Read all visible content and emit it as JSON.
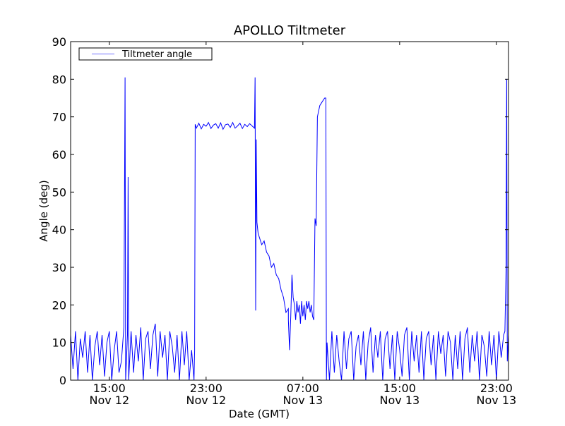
{
  "chart_data": {
    "type": "line",
    "title": "APOLLO Tiltmeter",
    "xlabel": "Date (GMT)",
    "ylabel": "Angle (deg)",
    "x_units": "hours since Nov 12 00:00 GMT",
    "xlim": [
      11.8,
      48.0
    ],
    "ylim": [
      0,
      90
    ],
    "yticks": [
      0,
      10,
      20,
      30,
      40,
      50,
      60,
      70,
      80,
      90
    ],
    "xticks": [
      {
        "value": 15,
        "time": "15:00",
        "date": "Nov 12"
      },
      {
        "value": 23,
        "time": "23:00",
        "date": "Nov 12"
      },
      {
        "value": 31,
        "time": "07:00",
        "date": "Nov 13"
      },
      {
        "value": 39,
        "time": "15:00",
        "date": "Nov 13"
      },
      {
        "value": 47,
        "time": "23:00",
        "date": "Nov 13"
      }
    ],
    "grid": false,
    "legend": {
      "position": "top-left",
      "entries": [
        {
          "label": "Tiltmeter angle",
          "color": "#0000ff"
        }
      ]
    },
    "series": [
      {
        "name": "Tiltmeter angle",
        "color": "#0000ff",
        "segments": [
          {
            "x0": 11.8,
            "step": 0.2,
            "y": [
              12,
              3,
              13,
              0,
              11,
              6,
              13,
              2,
              12,
              0,
              9,
              13,
              4,
              12,
              1,
              10,
              13,
              0,
              8,
              13,
              2,
              5
            ]
          },
          {
            "points": [
              [
                16.2,
                14
              ],
              [
                16.3,
                80.5
              ],
              [
                16.35,
                0
              ],
              [
                16.5,
                12
              ],
              [
                16.55,
                54
              ],
              [
                16.6,
                0
              ]
            ]
          },
          {
            "x0": 16.8,
            "step": 0.2,
            "y": [
              13,
              2,
              12,
              5,
              14,
              0,
              11,
              13,
              3,
              12,
              15,
              1,
              13,
              6,
              12,
              0,
              13,
              9,
              2,
              12,
              0,
              13,
              4,
              13,
              0,
              8
            ]
          },
          {
            "points": [
              [
                22.0,
                0
              ],
              [
                22.05,
                8
              ],
              [
                22.1,
                68
              ]
            ]
          },
          {
            "x0": 22.2,
            "step": 0.2,
            "y": [
              67,
              68.3,
              66.8,
              68,
              67.5,
              68.5,
              66.9,
              67.8,
              68.2,
              67,
              68.4,
              66.7,
              67.9,
              68.1,
              67.2,
              68.5,
              67,
              67.6,
              68.3,
              66.9,
              68,
              67.4,
              68.2,
              67.6
            ]
          },
          {
            "points": [
              [
                27.0,
                67
              ],
              [
                27.05,
                80.5
              ],
              [
                27.1,
                18.5
              ],
              [
                27.15,
                64
              ],
              [
                27.2,
                42
              ],
              [
                27.3,
                39
              ]
            ]
          },
          {
            "x0": 27.4,
            "step": 0.2,
            "y": [
              38,
              36,
              37,
              34,
              33,
              30,
              31,
              28,
              27,
              24,
              22,
              18,
              19
            ]
          },
          {
            "points": [
              [
                29.8,
                16
              ],
              [
                29.9,
                8
              ],
              [
                30.0,
                17
              ],
              [
                30.1,
                28
              ],
              [
                30.2,
                22
              ]
            ]
          },
          {
            "x0": 30.3,
            "step": 0.1,
            "y": [
              20,
              16,
              21,
              18,
              20,
              15,
              21,
              17,
              20,
              16,
              21,
              19,
              21,
              18,
              20,
              17
            ]
          },
          {
            "points": [
              [
                31.9,
                16
              ],
              [
                32.0,
                43
              ],
              [
                32.1,
                41
              ],
              [
                32.2,
                70
              ],
              [
                32.4,
                73
              ],
              [
                32.6,
                74
              ],
              [
                32.8,
                75
              ],
              [
                32.9,
                75
              ],
              [
                32.95,
                0
              ]
            ]
          },
          {
            "x0": 33.0,
            "step": 0.2,
            "y": [
              10,
              0,
              13,
              2,
              12,
              5,
              0,
              13,
              3,
              11,
              13,
              0,
              9,
              12,
              4,
              13,
              0,
              10,
              14,
              2,
              12,
              6,
              13,
              0,
              11,
              13,
              3,
              12,
              0,
              13,
              8,
              1,
              12,
              14,
              0,
              13,
              5,
              12,
              2,
              13,
              0,
              11,
              13,
              4,
              12,
              0,
              13,
              7,
              12,
              1,
              13,
              10,
              0,
              12,
              3,
              13,
              0,
              11,
              14,
              2,
              12,
              5,
              13,
              0,
              12,
              9,
              1,
              13,
              4,
              12,
              0,
              13,
              6,
              12
            ]
          },
          {
            "points": [
              [
                47.7,
                13
              ],
              [
                47.8,
                30
              ],
              [
                47.85,
                80
              ],
              [
                47.9,
                5
              ],
              [
                48.0,
                12
              ]
            ]
          }
        ]
      }
    ]
  }
}
